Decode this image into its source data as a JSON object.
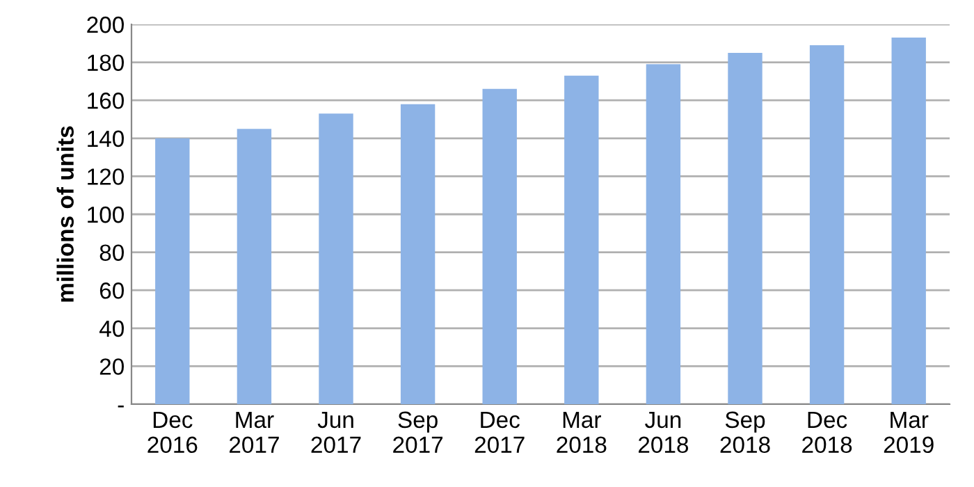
{
  "chart_data": {
    "type": "bar",
    "ylabel": "millions of units",
    "categories": [
      "Dec\n2016",
      "Mar\n2017",
      "Jun\n2017",
      "Sep\n2017",
      "Dec\n2017",
      "Mar\n2018",
      "Jun\n2018",
      "Sep\n2018",
      "Dec\n2018",
      "Mar\n2019"
    ],
    "values": [
      140,
      145,
      153,
      158,
      166,
      173,
      179,
      185,
      189,
      193
    ],
    "color": "#8db3e6",
    "ylim": [
      0,
      200
    ],
    "yticks": [
      {
        "value": 0,
        "label": "-"
      },
      20,
      40,
      60,
      80,
      100,
      120,
      140,
      160,
      180,
      200
    ],
    "grid": "y"
  }
}
